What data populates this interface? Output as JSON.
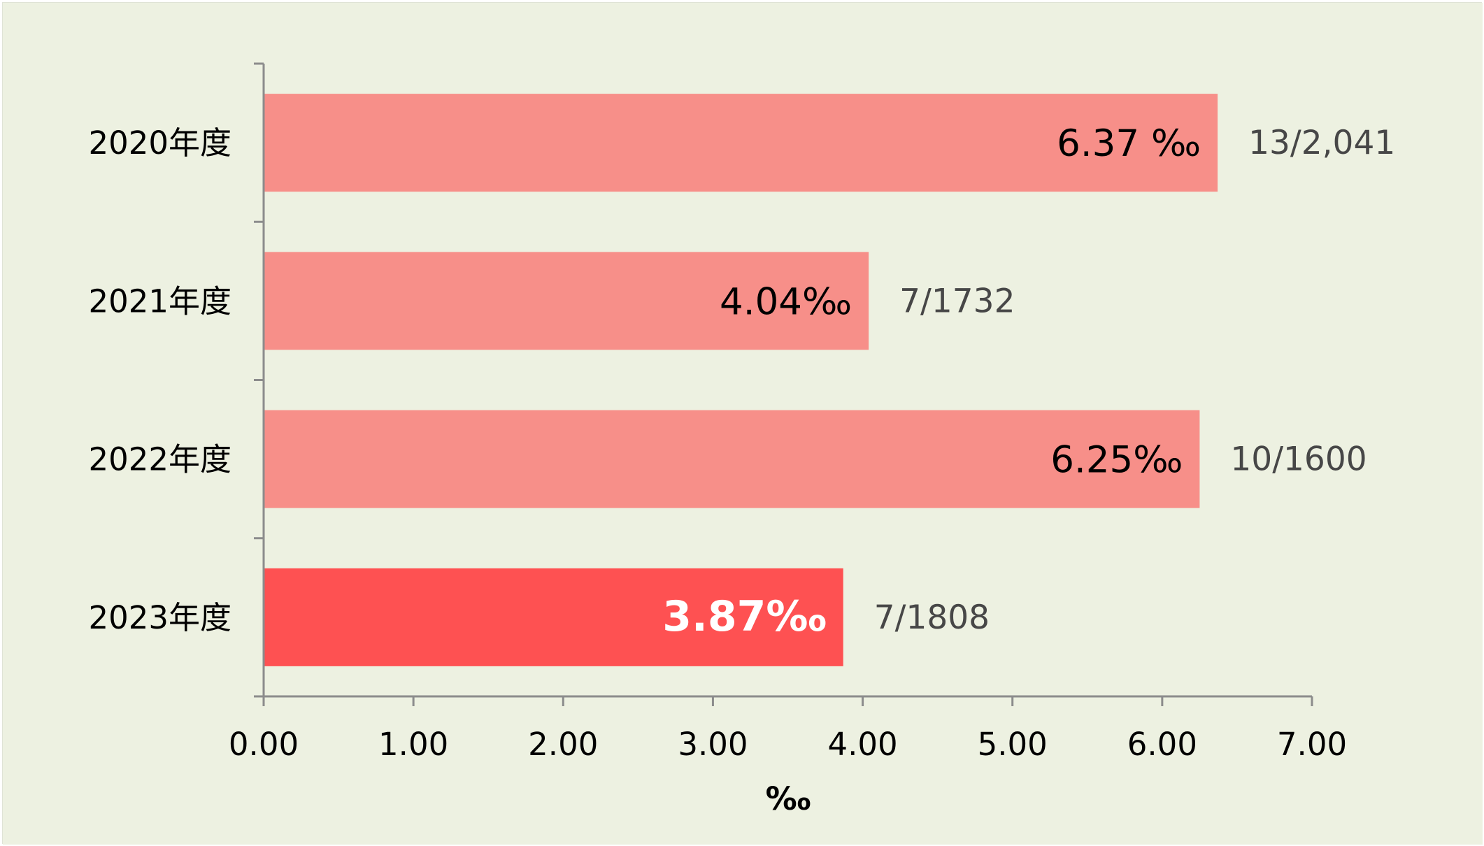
{
  "colors": {
    "background": "#edf1e1",
    "bar": "#f78f89",
    "bar_highlight": "#fe5152",
    "axis": "#8c8c8c",
    "text": "#000000",
    "annotation_text": "#474747",
    "highlight_label_text": "#ffffff"
  },
  "chart_data": {
    "type": "bar",
    "orientation": "horizontal",
    "categories": [
      "2020年度",
      "2021年度",
      "2022年度",
      "2023年度"
    ],
    "values": [
      6.37,
      4.04,
      6.25,
      3.87
    ],
    "value_labels": [
      "6.37 ‰",
      "4.04‰",
      "6.25‰",
      "3.87‰"
    ],
    "annotations": [
      "13/2,041",
      "7/1732",
      "10/1600",
      "7/1808"
    ],
    "highlighted_category": "2023年度",
    "xlabel": "‰",
    "ylabel": "",
    "title": "",
    "xlim": [
      0,
      7
    ],
    "xticks": [
      0,
      1,
      2,
      3,
      4,
      5,
      6,
      7
    ],
    "xtick_labels": [
      "0.00",
      "1.00",
      "2.00",
      "3.00",
      "4.00",
      "5.00",
      "6.00",
      "7.00"
    ],
    "grid": false,
    "legend": "none"
  }
}
